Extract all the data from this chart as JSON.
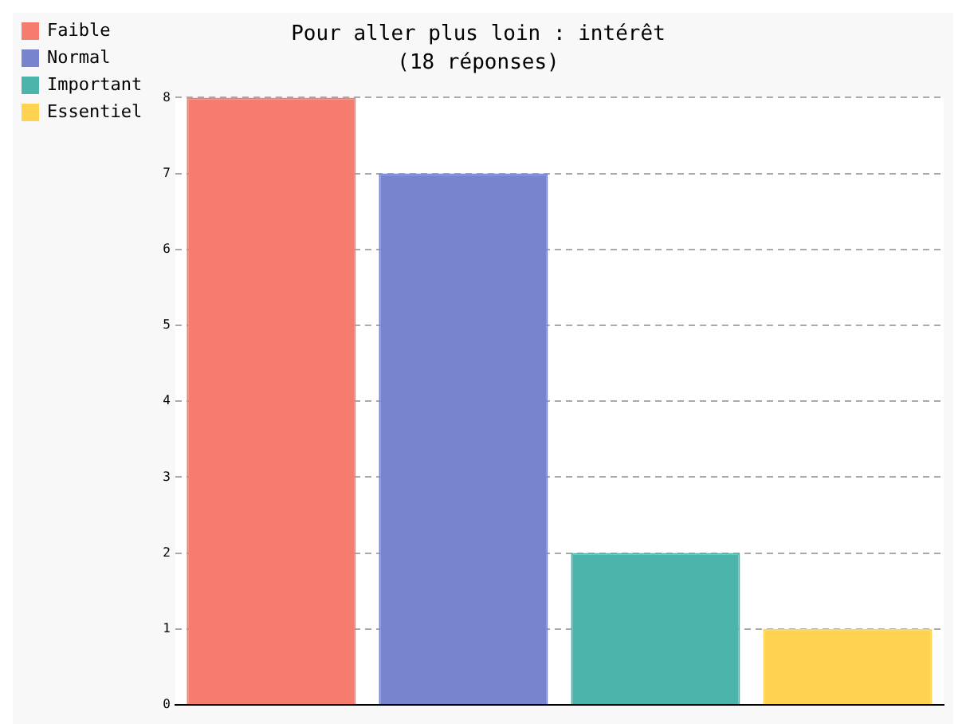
{
  "chart_data": {
    "type": "bar",
    "title": "Pour aller plus loin : intérêt",
    "subtitle": "(18 réponses)",
    "categories": [
      null,
      null,
      null,
      null
    ],
    "series": [
      {
        "name": "Faible",
        "color": "#f67c70",
        "values": [
          8,
          null,
          null,
          null
        ]
      },
      {
        "name": "Normal",
        "color": "#7884cd",
        "values": [
          null,
          7,
          null,
          null
        ]
      },
      {
        "name": "Important",
        "color": "#4cb4ab",
        "values": [
          null,
          null,
          2,
          null
        ]
      },
      {
        "name": "Essentiel",
        "color": "#ffd24f",
        "values": [
          null,
          null,
          null,
          1
        ]
      }
    ],
    "ylim": [
      0,
      8
    ],
    "yticks": [
      0,
      1,
      2,
      3,
      4,
      5,
      6,
      7,
      8
    ],
    "grid": "y",
    "legend": "top left"
  }
}
